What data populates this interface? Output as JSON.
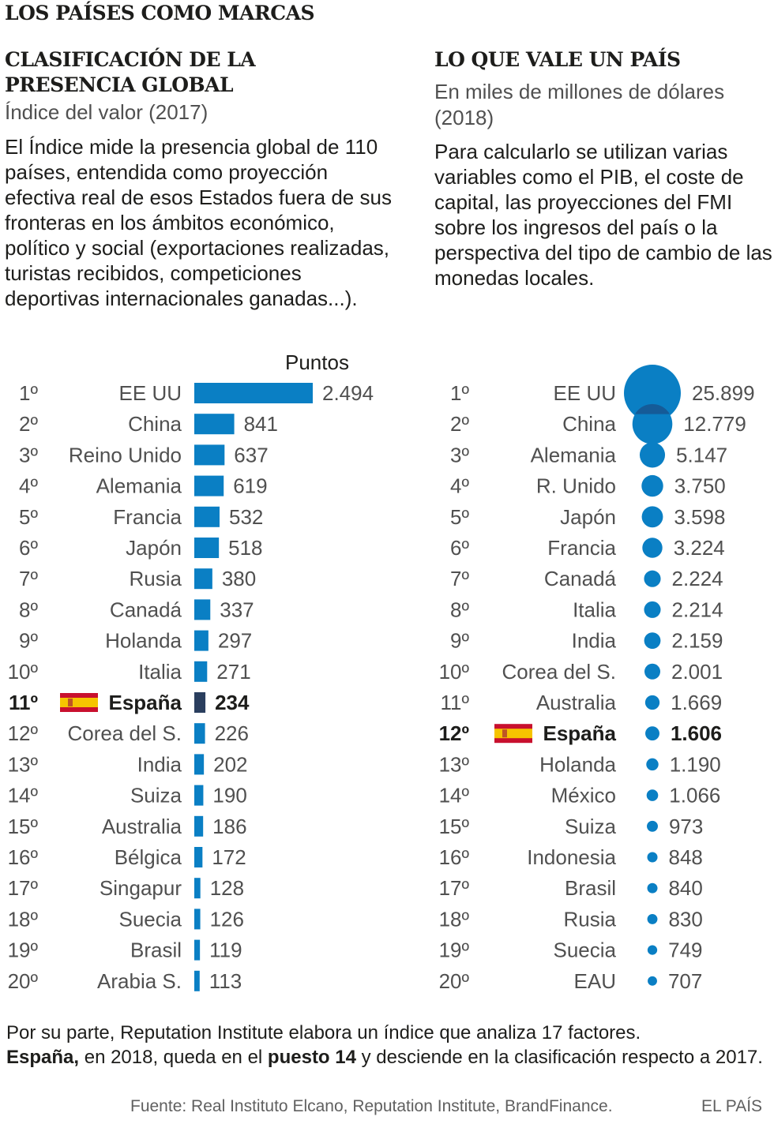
{
  "title": "LOS PAÍSES COMO MARCAS",
  "left": {
    "title": "CLASIFICACIÓN DE LA PRESENCIA GLOBAL",
    "subtitle": "Índice del valor (2017)",
    "description": "El Índice mide la presencia global de 110 países, entendida como proyección efectiva real de esos Estados fuera de sus fronteras en los ámbitos económico, político y social (exportaciones realizadas, turistas recibidos, competiciones deportivas internacionales ganadas...).",
    "unit_label": "Puntos"
  },
  "right": {
    "title": "LO QUE VALE UN PAÍS",
    "subtitle": "En miles de millones de dólares (2018)",
    "description": "Para calcularlo se utilizan varias variables como el PIB, el coste de capital, las proyecciones del FMI sobre los ingresos del país o la perspectiva del tipo de cambio de las monedas locales."
  },
  "footnote": {
    "part1": "Por su parte, Reputation Institute elabora un índice que analiza 17 factores.",
    "bold1": "España,",
    "part2": " en 2018, queda en el ",
    "bold2": "puesto 14",
    "part3": " y desciende en la clasificación respecto a 2017."
  },
  "source": "Fuente: Real Instituto Elcano, Reputation Institute, BrandFinance.",
  "brand": "EL PAÍS",
  "colors": {
    "bar": "#0a7fc4",
    "highlight": "#2a3e5e",
    "bubble": "#0a7fc4",
    "bubble_overlap": "#1a4f8a",
    "flag_red": "#c8102e",
    "flag_yellow": "#f6c400"
  },
  "chart_data": [
    {
      "type": "bar",
      "orientation": "horizontal",
      "title": "CLASIFICACIÓN DE LA PRESENCIA GLOBAL",
      "xlabel": "Puntos",
      "highlight": "España",
      "ranks": [
        "1º",
        "2º",
        "3º",
        "4º",
        "5º",
        "6º",
        "7º",
        "8º",
        "9º",
        "10º",
        "11º",
        "12º",
        "13º",
        "14º",
        "15º",
        "16º",
        "17º",
        "18º",
        "19º",
        "20º"
      ],
      "categories": [
        "EE UU",
        "China",
        "Reino Unido",
        "Alemania",
        "Francia",
        "Japón",
        "Rusia",
        "Canadá",
        "Holanda",
        "Italia",
        "España",
        "Corea del S.",
        "India",
        "Suiza",
        "Australia",
        "Bélgica",
        "Singapur",
        "Suecia",
        "Brasil",
        "Arabia S."
      ],
      "values": [
        2494,
        841,
        637,
        619,
        532,
        518,
        380,
        337,
        297,
        271,
        234,
        226,
        202,
        190,
        186,
        172,
        128,
        126,
        119,
        113
      ],
      "labels": [
        "2.494",
        "841",
        "637",
        "619",
        "532",
        "518",
        "380",
        "337",
        "297",
        "271",
        "234",
        "226",
        "202",
        "190",
        "186",
        "172",
        "128",
        "126",
        "119",
        "113"
      ]
    },
    {
      "type": "bubble",
      "title": "LO QUE VALE UN PAÍS",
      "unit": "miles de millones de dólares",
      "highlight": "España",
      "ranks": [
        "1º",
        "2º",
        "3º",
        "4º",
        "5º",
        "6º",
        "7º",
        "8º",
        "9º",
        "10º",
        "11º",
        "12º",
        "13º",
        "14º",
        "15º",
        "16º",
        "17º",
        "18º",
        "19º",
        "20º"
      ],
      "categories": [
        "EE UU",
        "China",
        "Alemania",
        "R. Unido",
        "Japón",
        "Francia",
        "Canadá",
        "Italia",
        "India",
        "Corea del S.",
        "Australia",
        "España",
        "Holanda",
        "México",
        "Suiza",
        "Indonesia",
        "Brasil",
        "Rusia",
        "Suecia",
        "EAU"
      ],
      "values": [
        25899,
        12779,
        5147,
        3750,
        3598,
        3224,
        2224,
        2214,
        2159,
        2001,
        1669,
        1606,
        1190,
        1066,
        973,
        848,
        840,
        830,
        749,
        707
      ],
      "labels": [
        "25.899",
        "12.779",
        "5.147",
        "3.750",
        "3.598",
        "3.224",
        "2.224",
        "2.214",
        "2.159",
        "2.001",
        "1.669",
        "1.606",
        "1.190",
        "1.066",
        "973",
        "848",
        "840",
        "830",
        "749",
        "707"
      ]
    }
  ]
}
